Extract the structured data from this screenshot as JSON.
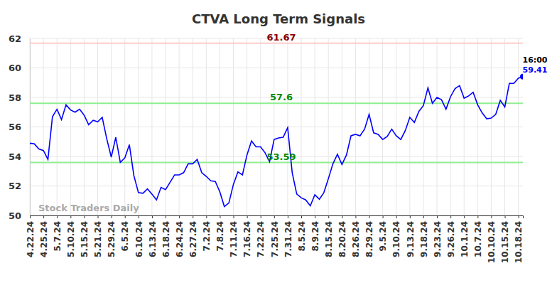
{
  "chart_data": {
    "type": "line",
    "title": "CTVA Long Term Signals",
    "categories": [
      "4.22.24",
      null,
      null,
      "4.25.24",
      null,
      null,
      "5.7.24",
      null,
      null,
      "5.10.24",
      null,
      null,
      "5.15.24",
      null,
      null,
      "5.21.24",
      null,
      null,
      "5.29.24",
      null,
      null,
      "6.5.24",
      null,
      null,
      "6.10.24",
      null,
      null,
      "6.13.24",
      null,
      null,
      "6.18.24",
      null,
      null,
      "6.24.24",
      null,
      null,
      "6.27.24",
      null,
      null,
      "7.2.24",
      null,
      null,
      "7.8.24",
      null,
      null,
      "7.11.24",
      null,
      null,
      "7.16.24",
      null,
      null,
      "7.22.24",
      null,
      null,
      "7.25.24",
      null,
      null,
      "7.31.24",
      null,
      null,
      "8.5.24",
      null,
      null,
      "8.9.24",
      null,
      null,
      "8.15.24",
      null,
      null,
      "8.20.24",
      null,
      null,
      "8.26.24",
      null,
      null,
      "8.29.24",
      null,
      null,
      "9.5.24",
      null,
      null,
      "9.10.24",
      null,
      null,
      "9.13.24",
      null,
      null,
      "9.18.24",
      null,
      null,
      "9.23.24",
      null,
      null,
      "9.26.24",
      null,
      null,
      "10.1.24",
      null,
      null,
      "10.7.24",
      null,
      null,
      "10.10.24",
      null,
      null,
      "10.15.24",
      null,
      null,
      "10.18.24",
      null
    ],
    "values": [
      54.9,
      54.85,
      54.5,
      54.4,
      53.8,
      56.7,
      57.2,
      56.5,
      57.5,
      57.15,
      57.0,
      57.2,
      56.8,
      56.15,
      56.45,
      56.35,
      56.65,
      55.2,
      53.95,
      55.3,
      53.6,
      53.9,
      54.8,
      52.7,
      51.55,
      51.5,
      51.8,
      51.45,
      51.05,
      51.9,
      51.75,
      52.25,
      52.75,
      52.75,
      52.9,
      53.5,
      53.5,
      53.8,
      52.9,
      52.65,
      52.35,
      52.3,
      51.6,
      50.6,
      50.85,
      52.1,
      52.95,
      52.75,
      54.1,
      55.05,
      54.65,
      54.65,
      54.25,
      53.65,
      55.15,
      55.25,
      55.3,
      55.95,
      52.9,
      51.45,
      51.2,
      51.05,
      50.65,
      51.4,
      51.1,
      51.55,
      52.5,
      53.5,
      54.15,
      53.45,
      54.1,
      55.4,
      55.5,
      55.4,
      55.85,
      56.85,
      55.6,
      55.5,
      55.15,
      55.35,
      55.85,
      55.4,
      55.15,
      55.75,
      56.65,
      56.3,
      57.05,
      57.45,
      58.65,
      57.6,
      58.0,
      57.85,
      57.2,
      58.05,
      58.6,
      58.8,
      57.95,
      58.1,
      58.35,
      57.5,
      56.95,
      56.55,
      56.6,
      56.85,
      57.8,
      57.35,
      58.95,
      58.95,
      59.3,
      59.41
    ],
    "color": "#0000ff",
    "ylim": [
      50,
      62
    ],
    "yticks": [
      50,
      52,
      54,
      56,
      58,
      60,
      62
    ],
    "grid": true,
    "reference_lines": [
      {
        "value": 61.67,
        "label": "61.67",
        "color": "#ffcccc"
      },
      {
        "value": 57.6,
        "label": "57.6",
        "color": "#90ee90"
      },
      {
        "value": 53.59,
        "label": "53.59",
        "color": "#90ee90"
      }
    ],
    "annotations": [
      {
        "text": "16:00"
      },
      {
        "text": "59.41"
      }
    ],
    "watermark": "Stock Traders Daily"
  }
}
